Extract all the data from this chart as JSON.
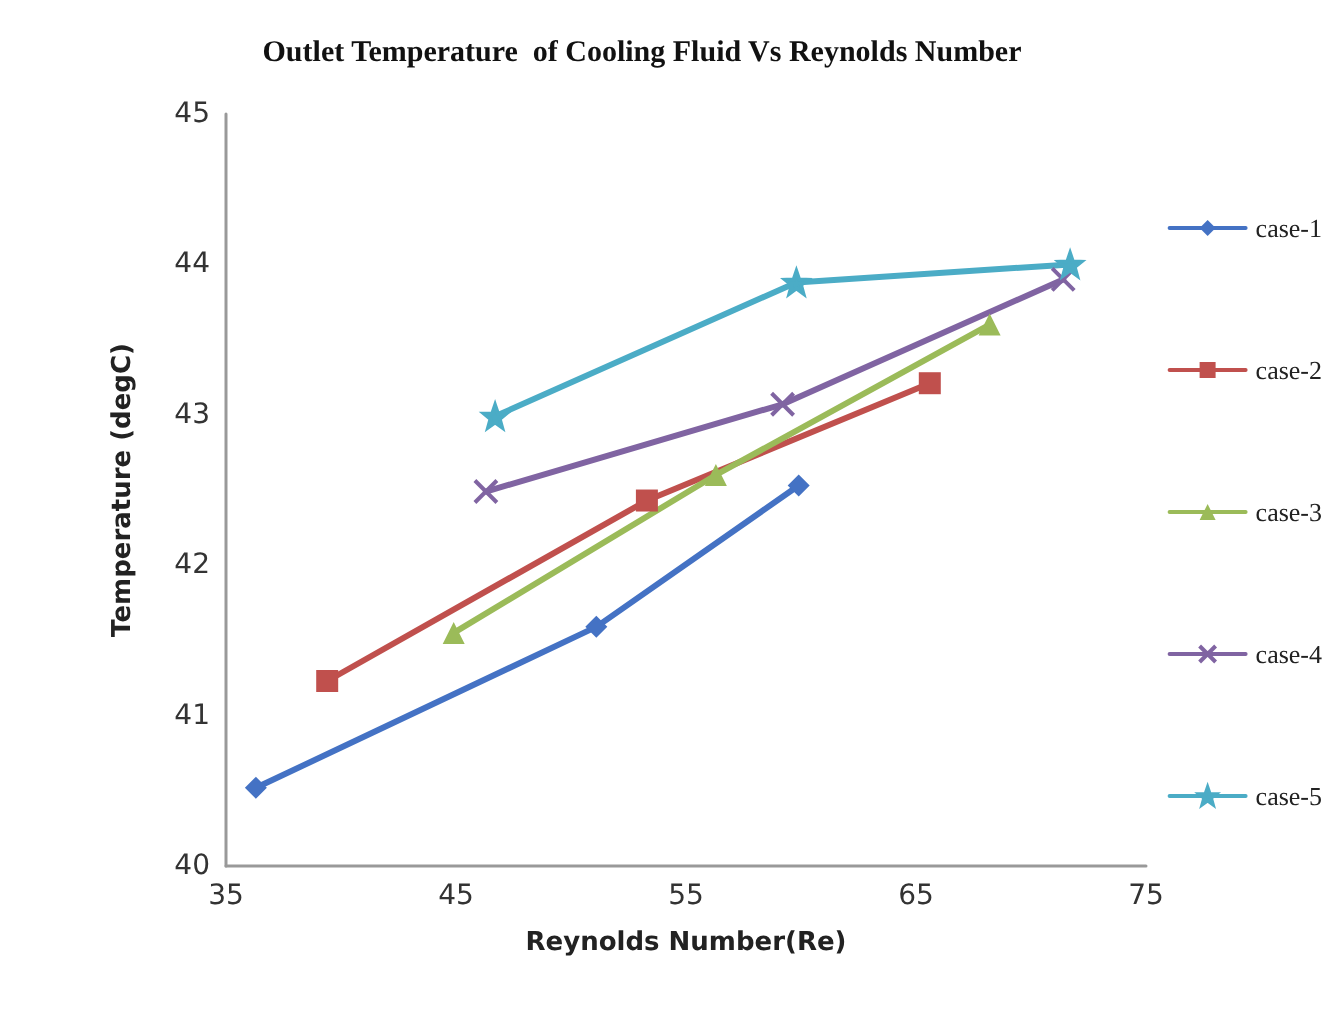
{
  "chart_data": {
    "type": "line",
    "title": "Outlet Temperature  of Cooling Fluid Vs Reynolds Number",
    "xlabel": "Reynolds Number(Re)",
    "ylabel": "Temperature (degC)",
    "xlim": [
      35,
      75
    ],
    "xticks": [
      35,
      45,
      55,
      65,
      75
    ],
    "ylim": [
      40,
      45
    ],
    "yticks": [
      40,
      41,
      42,
      43,
      44,
      45
    ],
    "grid": false,
    "legend": "right",
    "series": [
      {
        "name": "case-1",
        "color": "#4472c4",
        "marker": "diamond",
        "x": [
          36.3,
          51.1,
          59.9
        ],
        "values": [
          40.52,
          41.59,
          42.53
        ]
      },
      {
        "name": "case-2",
        "color": "#c0504d",
        "marker": "square",
        "x": [
          39.4,
          53.3,
          65.6
        ],
        "values": [
          41.23,
          42.43,
          43.21
        ]
      },
      {
        "name": "case-3",
        "color": "#9bbb59",
        "marker": "triangle",
        "x": [
          44.9,
          56.3,
          68.2
        ],
        "values": [
          41.55,
          42.6,
          43.6
        ]
      },
      {
        "name": "case-4",
        "color": "#8064a2",
        "marker": "cross",
        "x": [
          46.3,
          59.2,
          71.4
        ],
        "values": [
          42.49,
          43.07,
          43.9
        ]
      },
      {
        "name": "case-5",
        "color": "#4bacc6",
        "marker": "star",
        "x": [
          46.7,
          59.8,
          71.7
        ],
        "values": [
          42.99,
          43.88,
          44.0
        ]
      }
    ]
  }
}
